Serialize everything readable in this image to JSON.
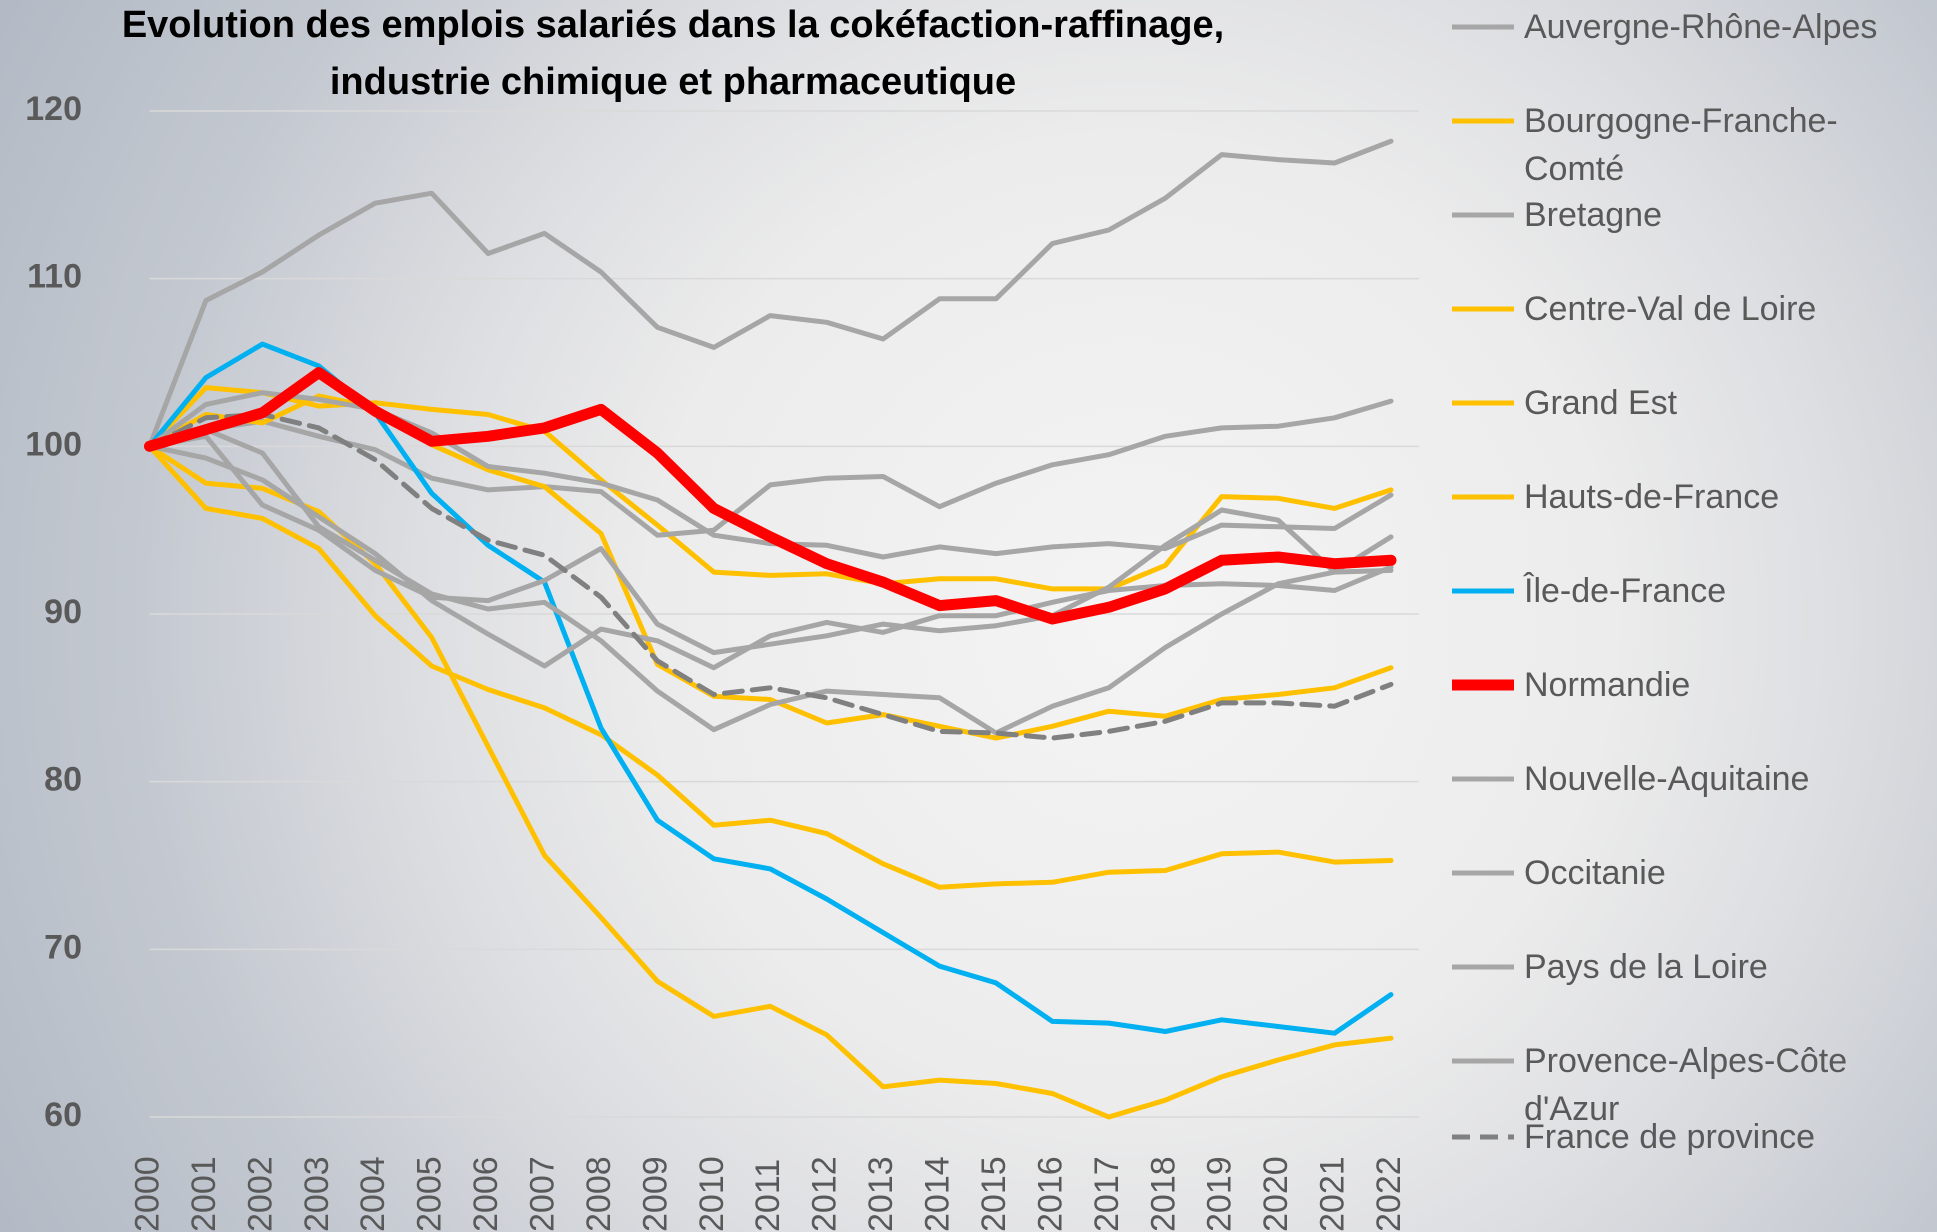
{
  "chart_data": {
    "type": "line",
    "title": "Evolution des emplois salariés dans la cokéfaction-raffinage, industrie chimique et pharmaceutique",
    "categories": [
      "2000",
      "2001",
      "2002",
      "2003",
      "2004",
      "2005",
      "2006",
      "2007",
      "2008",
      "2009",
      "2010",
      "2011",
      "2012",
      "2013",
      "2014",
      "2015",
      "2016",
      "2017",
      "2018",
      "2019",
      "2020",
      "2021",
      "2022"
    ],
    "ylim": [
      60,
      120
    ],
    "yticks": [
      60,
      70,
      80,
      90,
      100,
      110,
      120
    ],
    "grid": true,
    "legend": "right",
    "series": [
      {
        "name": "Auvergne-Rhône-Alpes",
        "color": "#a6a6a6",
        "values": [
          100,
          108.7,
          110.4,
          112.6,
          114.5,
          115.1,
          111.5,
          112.7,
          110.4,
          107.1,
          105.9,
          107.8,
          107.4,
          106.4,
          108.8,
          108.8,
          112.1,
          112.9,
          114.8,
          117.4,
          117.1,
          116.9,
          118.2
        ]
      },
      {
        "name": "Bourgogne-Franche-Comté",
        "color": "#ffc000",
        "values": [
          100,
          103.5,
          103.2,
          102.4,
          102.6,
          102.2,
          101.9,
          100.9,
          98.0,
          95.3,
          92.5,
          92.3,
          92.4,
          91.8,
          92.1,
          92.1,
          91.5,
          91.5,
          92.9,
          97.0,
          96.9,
          96.3,
          97.4
        ]
      },
      {
        "name": "Bretagne",
        "color": "#a6a6a6",
        "values": [
          100,
          101.0,
          101.5,
          100.6,
          99.8,
          98.1,
          97.4,
          97.6,
          97.3,
          94.7,
          95.0,
          97.7,
          98.1,
          98.2,
          96.4,
          97.8,
          98.9,
          99.5,
          100.6,
          101.1,
          101.2,
          101.7,
          102.7
        ]
      },
      {
        "name": "Centre-Val de Loire",
        "color": "#ffc000",
        "values": [
          100,
          101.9,
          101.4,
          103.0,
          102.3,
          100.1,
          98.6,
          97.6,
          94.8,
          87.0,
          85.1,
          84.9,
          83.5,
          84.0,
          83.3,
          82.6,
          83.3,
          84.2,
          83.9,
          84.9,
          85.2,
          85.6,
          86.8
        ]
      },
      {
        "name": "Grand Est",
        "color": "#ffc000",
        "values": [
          100,
          96.3,
          95.7,
          93.9,
          89.9,
          86.9,
          85.5,
          84.4,
          82.8,
          80.4,
          77.4,
          77.7,
          76.9,
          75.1,
          73.7,
          73.9,
          74.0,
          74.6,
          74.7,
          75.7,
          75.8,
          75.2,
          75.3
        ]
      },
      {
        "name": "Hauts-de-France",
        "color": "#ffc000",
        "values": [
          100,
          97.8,
          97.5,
          96.1,
          93.0,
          88.6,
          82.1,
          75.6,
          71.9,
          68.1,
          66.0,
          66.6,
          64.9,
          61.8,
          62.2,
          62.0,
          61.4,
          60.0,
          61.0,
          62.4,
          63.4,
          64.3,
          64.7
        ]
      },
      {
        "name": "Île-de-France",
        "color": "#00b0f0",
        "values": [
          100,
          104.1,
          106.1,
          104.8,
          102.0,
          97.2,
          94.1,
          91.9,
          83.2,
          77.7,
          75.4,
          74.8,
          73.0,
          71.0,
          69.0,
          68.0,
          65.7,
          65.6,
          65.1,
          65.8,
          65.4,
          65.0,
          67.3
        ]
      },
      {
        "name": "Normandie",
        "color": "#ff0000",
        "bold": true,
        "values": [
          100,
          101.0,
          102.0,
          104.4,
          102.1,
          100.3,
          100.6,
          101.1,
          102.2,
          99.6,
          96.3,
          94.6,
          93.0,
          91.9,
          90.5,
          90.8,
          89.7,
          90.4,
          91.5,
          93.2,
          93.4,
          93.0,
          93.2
        ]
      },
      {
        "name": "Nouvelle-Aquitaine",
        "color": "#a6a6a6",
        "values": [
          100,
          102.5,
          103.2,
          102.8,
          102.2,
          100.8,
          98.8,
          98.4,
          97.8,
          96.8,
          94.7,
          94.2,
          94.1,
          93.4,
          94.0,
          93.6,
          94.0,
          94.2,
          93.9,
          95.3,
          95.2,
          95.1,
          97.1
        ]
      },
      {
        "name": "Occitanie",
        "color": "#a6a6a6",
        "values": [
          100,
          101.0,
          99.6,
          95.2,
          93.2,
          91.2,
          90.3,
          90.7,
          88.4,
          85.4,
          83.1,
          84.6,
          85.4,
          85.2,
          85.0,
          82.9,
          84.5,
          85.6,
          88.0,
          90.0,
          91.8,
          92.5,
          94.6
        ]
      },
      {
        "name": "Pays de la Loire",
        "color": "#a6a6a6",
        "values": [
          100,
          100.6,
          96.5,
          95.0,
          92.6,
          91.0,
          90.8,
          92.0,
          93.9,
          89.4,
          87.7,
          88.2,
          88.7,
          89.4,
          89.0,
          89.3,
          89.9,
          91.6,
          94.1,
          96.2,
          95.6,
          92.5,
          92.6
        ]
      },
      {
        "name": "Provence-Alpes-Côte d'Azur",
        "color": "#a6a6a6",
        "values": [
          100,
          99.3,
          98.0,
          95.8,
          93.6,
          90.8,
          88.8,
          86.9,
          89.1,
          88.4,
          86.8,
          88.7,
          89.5,
          88.9,
          89.9,
          89.9,
          90.7,
          91.4,
          91.7,
          91.8,
          91.7,
          91.4,
          92.8
        ]
      },
      {
        "name": "France de province",
        "color": "#808080",
        "dashed": true,
        "values": [
          100,
          101.7,
          101.9,
          101.1,
          99.2,
          96.3,
          94.4,
          93.5,
          91.0,
          87.2,
          85.2,
          85.6,
          85.0,
          84.0,
          83.0,
          82.9,
          82.6,
          83.0,
          83.6,
          84.7,
          84.7,
          84.5,
          85.8
        ]
      }
    ]
  }
}
